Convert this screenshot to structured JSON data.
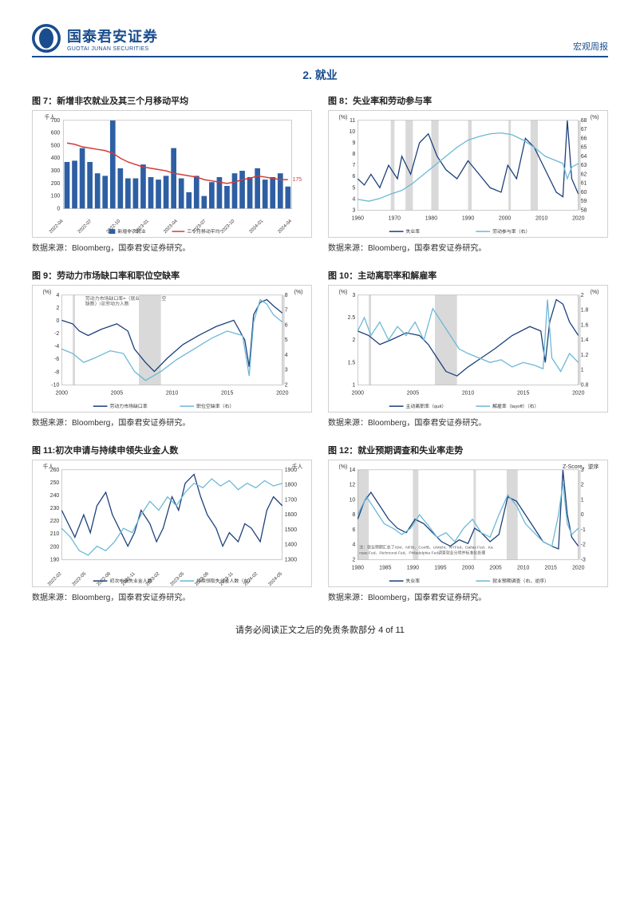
{
  "header": {
    "company_cn": "国泰君安证券",
    "company_en": "GUOTAI JUNAN SECURITIES",
    "report_type": "宏观周报"
  },
  "section": {
    "number": "2.",
    "title": "就业"
  },
  "charts": {
    "fig7": {
      "title": "图 7：新增非农就业及其三个月移动平均",
      "type": "bar_line",
      "unit_left": "千人",
      "xlabels": [
        "2022-04",
        "2022-07",
        "2022-10",
        "2023-01",
        "2023-04",
        "2023-07",
        "2023-10",
        "2024-01",
        "2024-04"
      ],
      "ylim": [
        0,
        700
      ],
      "ytick_step": 100,
      "bars": [
        370,
        380,
        480,
        370,
        280,
        260,
        700,
        320,
        240,
        240,
        350,
        250,
        230,
        260,
        480,
        240,
        130,
        260,
        100,
        210,
        250,
        180,
        280,
        300,
        250,
        320,
        230,
        250,
        280,
        175
      ],
      "line": [
        520,
        510,
        490,
        480,
        470,
        460,
        440,
        400,
        370,
        350,
        330,
        320,
        310,
        300,
        280,
        270,
        260,
        250,
        230,
        220,
        210,
        200,
        210,
        230,
        240,
        260,
        250,
        240,
        230,
        230
      ],
      "bar_color": "#2e5fa3",
      "line_color": "#d73838",
      "end_label": "175",
      "legend": [
        {
          "label": "新增非农就业",
          "type": "bar",
          "color": "#2e5fa3"
        },
        {
          "label": "三个月移动平均",
          "type": "line",
          "color": "#d73838"
        }
      ],
      "source": "数据来源：Bloomberg，国泰君安证券研究。"
    },
    "fig8": {
      "title": "图 8：失业率和劳动参与率",
      "type": "dual_line",
      "unit_left": "(%)",
      "unit_right": "(%)",
      "xlabels": [
        "1960",
        "1970",
        "1980",
        "1990",
        "2000",
        "2010",
        "2020"
      ],
      "ylim_left": [
        3,
        11
      ],
      "ytick_left": [
        3,
        4,
        5,
        6,
        7,
        8,
        9,
        10,
        11
      ],
      "ylim_right": [
        58,
        68
      ],
      "ytick_right": [
        58,
        59,
        60,
        61,
        62,
        63,
        64,
        65,
        66,
        67,
        68
      ],
      "series1": {
        "color": "#1a3f7a",
        "label": "失业率"
      },
      "series2": {
        "color": "#6bb8d6",
        "label": "劳动参与率（右）"
      },
      "recession_bars": [
        [
          1969,
          1970
        ],
        [
          1973,
          1975
        ],
        [
          1980,
          1982
        ],
        [
          1990,
          1991
        ],
        [
          2001,
          2001
        ],
        [
          2007,
          2009
        ],
        [
          2020,
          2020
        ]
      ],
      "source": "数据来源：Bloomberg，国泰君安证券研究。"
    },
    "fig9": {
      "title": "图 9：劳动力市场缺口率和职位空缺率",
      "type": "dual_line",
      "unit_left": "(%)",
      "unit_right": "(%)",
      "xlabels": [
        "2000",
        "2005",
        "2010",
        "2015",
        "2020"
      ],
      "ylim_left": [
        -10,
        4
      ],
      "ytick_left": [
        -10,
        -8,
        -6,
        -4,
        -2,
        0,
        2,
        4
      ],
      "ylim_right": [
        2,
        8
      ],
      "ytick_right": [
        2,
        3,
        4,
        5,
        6,
        7,
        8
      ],
      "note": "劳动力市场缺口率=（就业人数+职位空缺数）/总劳动力人数",
      "series1": {
        "color": "#1a3f7a",
        "label": "劳动力市场缺口率"
      },
      "series2": {
        "color": "#6bb8d6",
        "label": "职位空缺率（右）"
      },
      "recession_bars": [
        [
          2001,
          2001
        ],
        [
          2007,
          2009
        ],
        [
          2020,
          2020
        ]
      ],
      "source": "数据来源：Bloomberg，国泰君安证券研究。"
    },
    "fig10": {
      "title": "图 10：主动离职率和解雇率",
      "type": "dual_line",
      "unit_left": "(%)",
      "unit_right": "(%)",
      "xlabels": [
        "2000",
        "2005",
        "2010",
        "2015",
        "2020"
      ],
      "ylim_left": [
        1.0,
        3.0
      ],
      "ytick_left": [
        1.0,
        1.5,
        2.0,
        2.5,
        3.0
      ],
      "ylim_right": [
        0.8,
        2.0
      ],
      "ytick_right": [
        0.8,
        1.0,
        1.2,
        1.4,
        1.6,
        1.8,
        2.0
      ],
      "series1": {
        "color": "#1a3f7a",
        "label": "主动离职率（quit）"
      },
      "series2": {
        "color": "#6bb8d6",
        "label": "解雇率（layoff）（右）"
      },
      "recession_bars": [
        [
          2001,
          2001
        ],
        [
          2007,
          2009
        ],
        [
          2020,
          2020
        ]
      ],
      "source": "数据来源：Bloomberg，国泰君安证券研究。"
    },
    "fig11": {
      "title": "图 11:初次申请与持续申领失业金人数",
      "type": "dual_line",
      "unit_left": "千人",
      "unit_right": "千人",
      "xlabels": [
        "2022-02",
        "2022-05",
        "2022-08",
        "2022-11",
        "2023-02",
        "2023-05",
        "2023-08",
        "2023-11",
        "2024-02",
        "2024-05"
      ],
      "ylim_left": [
        190,
        260
      ],
      "ytick_left": [
        190,
        200,
        210,
        220,
        230,
        240,
        250,
        260
      ],
      "ylim_right": [
        1300,
        1900
      ],
      "ytick_right": [
        1300,
        1400,
        1500,
        1600,
        1700,
        1800,
        1900
      ],
      "series1": {
        "color": "#1a3f7a",
        "label": "初次申请失业金人数"
      },
      "series2": {
        "color": "#6bb8d6",
        "label": "持续领取失业金人数（右）"
      },
      "source": "数据来源：Bloomberg，国泰君安证券研究。"
    },
    "fig12": {
      "title": "图 12：就业预期调查和失业率走势",
      "type": "dual_line",
      "unit_left": "(%)",
      "unit_right": "Z-Score，逆序",
      "xlabels": [
        "1980",
        "1985",
        "1990",
        "1995",
        "2000",
        "2005",
        "2010",
        "2015",
        "2020"
      ],
      "ylim_left": [
        2,
        14
      ],
      "ytick_left": [
        2,
        4,
        6,
        8,
        10,
        12,
        14
      ],
      "ylim_right": [
        -3,
        3
      ],
      "ytick_right": [
        -3,
        -2,
        -1,
        0,
        1,
        2,
        3
      ],
      "series1": {
        "color": "#1a3f7a",
        "label": "失业率"
      },
      "series2": {
        "color": "#6bb8d6",
        "label": "就业预期调查（右，逆序）"
      },
      "recession_bars": [
        [
          1980,
          1982
        ],
        [
          1990,
          1991
        ],
        [
          2001,
          2001
        ],
        [
          2007,
          2009
        ],
        [
          2020,
          2020
        ]
      ],
      "note": "注：就业预期汇总了ISM、NFIB、ConfB、UMichi、NYFed、Dallas Fed、Kansas Fed、Richmond Fed、Philadelphia Fed调查就业分项并标准化处理",
      "source": "数据来源：Bloomberg，国泰君安证券研究。"
    }
  },
  "footer": {
    "text": "请务必阅读正文之后的免责条款部分 4 of 11"
  }
}
